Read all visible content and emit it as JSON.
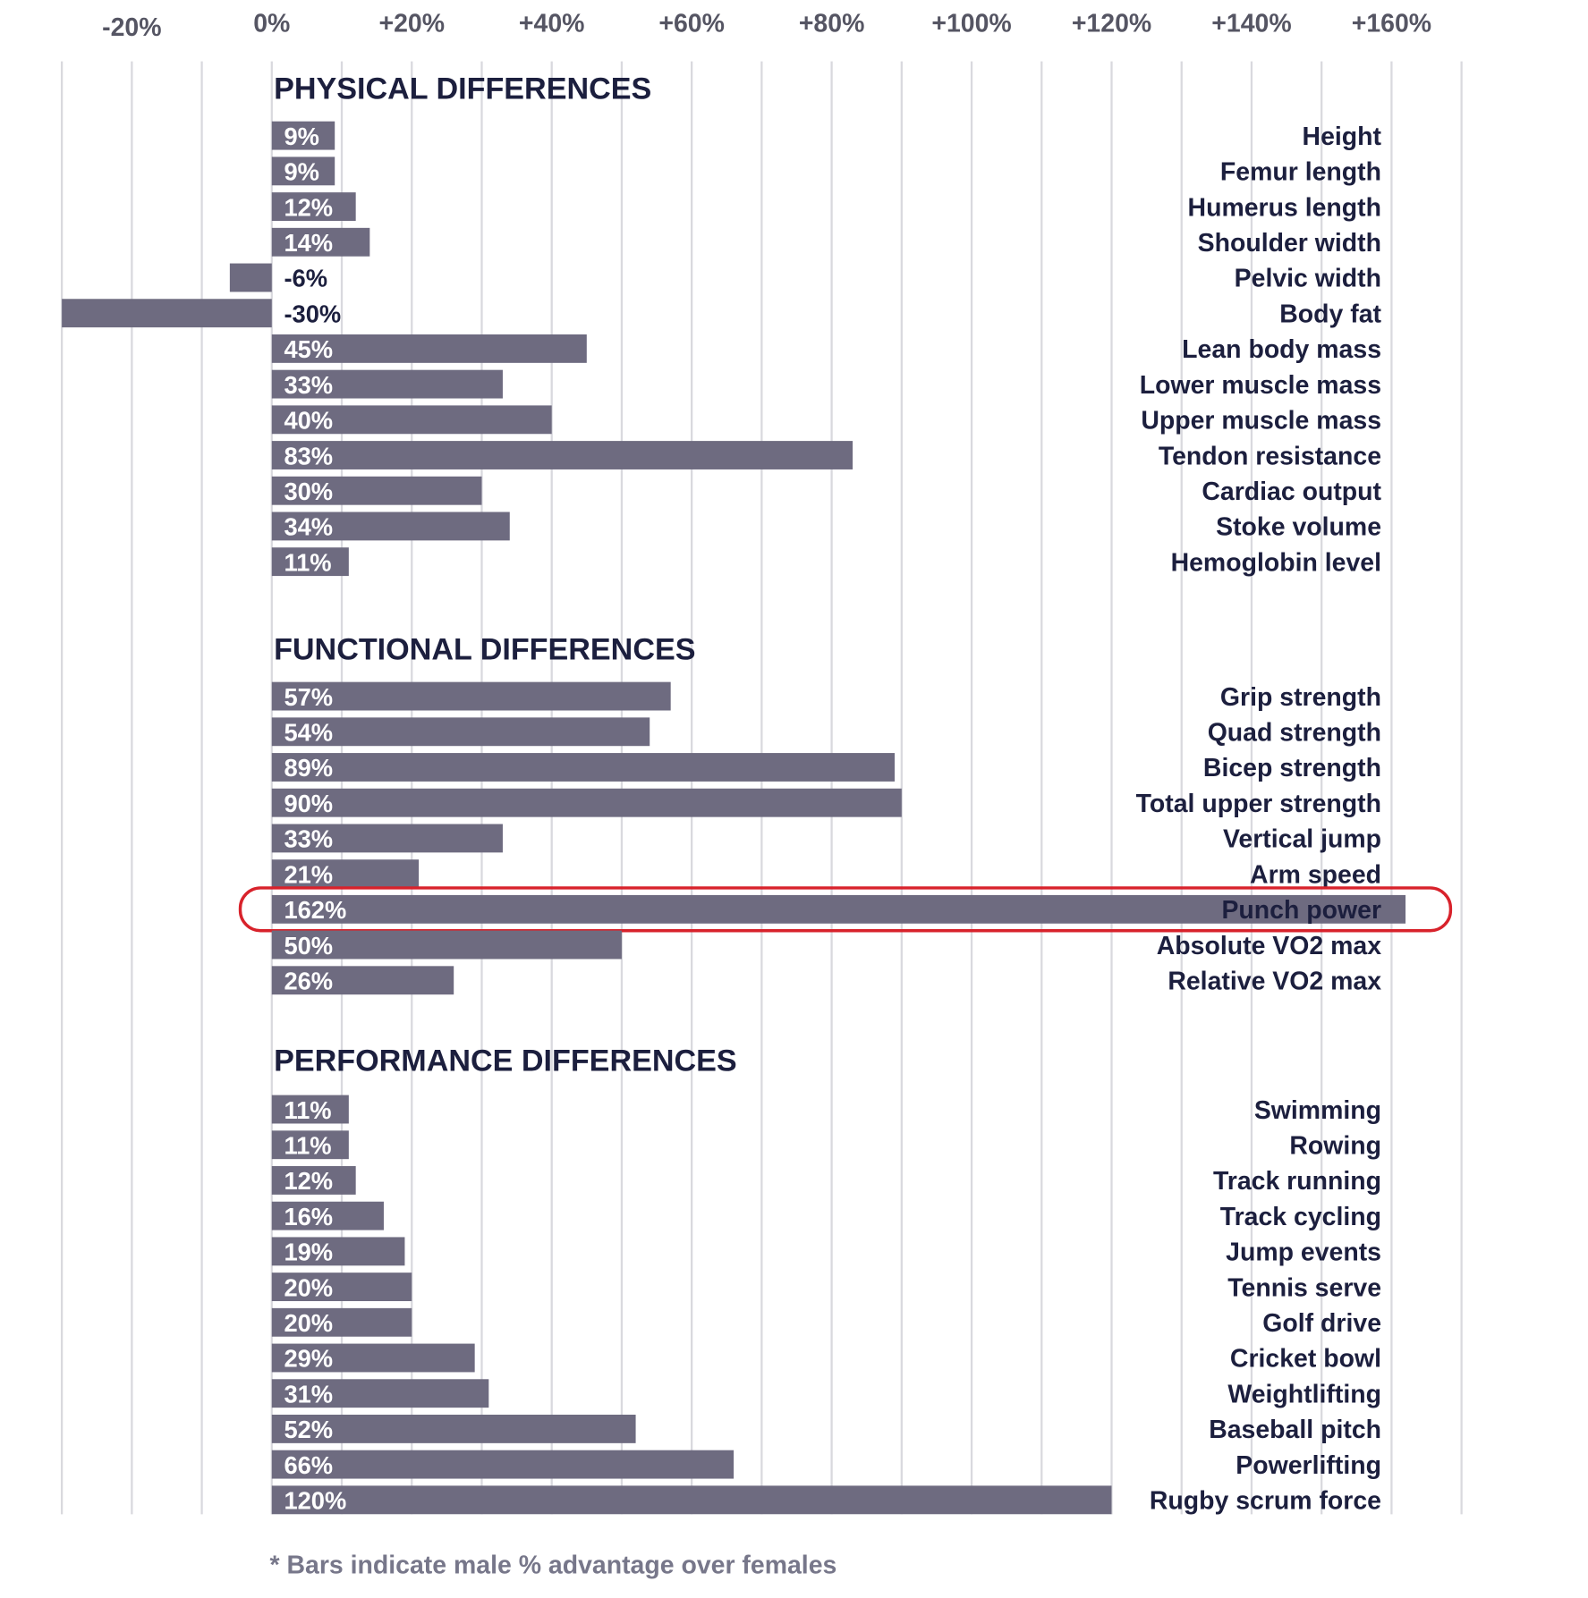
{
  "chart_data": {
    "type": "bar",
    "orientation": "horizontal",
    "xlim": [
      -30,
      170
    ],
    "grid": true,
    "x_ticks": [
      "-20%",
      "0%",
      "+20%",
      "+40%",
      "+60%",
      "+80%",
      "+100%",
      "+120%",
      "+140%",
      "+160%"
    ],
    "x_tick_values": [
      -20,
      0,
      20,
      40,
      60,
      80,
      100,
      120,
      140,
      160
    ],
    "bar_color": "#6e6b80",
    "highlight_color": "#d8222b",
    "highlighted_category": "Punch power",
    "footnote": "* Bars indicate male % advantage over females",
    "groups": [
      {
        "title": "PHYSICAL DIFFERENCES",
        "categories": [
          "Height",
          "Femur length",
          "Humerus length",
          "Shoulder width",
          "Pelvic width",
          "Body fat",
          "Lean body mass",
          "Lower muscle mass",
          "Upper muscle mass",
          "Tendon resistance",
          "Cardiac output",
          "Stoke volume",
          "Hemoglobin level"
        ],
        "values": [
          9,
          9,
          12,
          14,
          -6,
          -30,
          45,
          33,
          40,
          83,
          30,
          34,
          11
        ],
        "labels": [
          "9%",
          "9%",
          "12%",
          "14%",
          "-6%",
          "-30%",
          "45%",
          "33%",
          "40%",
          "83%",
          "30%",
          "34%",
          "11%"
        ]
      },
      {
        "title": "FUNCTIONAL DIFFERENCES",
        "categories": [
          "Grip strength",
          "Quad strength",
          "Bicep strength",
          "Total upper strength",
          "Vertical jump",
          "Arm speed",
          "Punch power",
          "Absolute VO2 max",
          "Relative VO2 max"
        ],
        "values": [
          57,
          54,
          89,
          90,
          33,
          21,
          162,
          50,
          26
        ],
        "labels": [
          "57%",
          "54%",
          "89%",
          "90%",
          "33%",
          "21%",
          "162%",
          "50%",
          "26%"
        ]
      },
      {
        "title": "PERFORMANCE DIFFERENCES",
        "categories": [
          "Swimming",
          "Rowing",
          "Track running",
          "Track cycling",
          "Jump events",
          "Tennis serve",
          "Golf drive",
          "Cricket bowl",
          "Weightlifting",
          "Baseball pitch",
          "Powerlifting",
          "Rugby scrum force"
        ],
        "values": [
          11,
          11,
          12,
          16,
          19,
          20,
          20,
          29,
          31,
          52,
          66,
          120
        ],
        "labels": [
          "11%",
          "11%",
          "12%",
          "16%",
          "19%",
          "20%",
          "20%",
          "29%",
          "31%",
          "52%",
          "66%",
          "120%"
        ]
      }
    ]
  }
}
